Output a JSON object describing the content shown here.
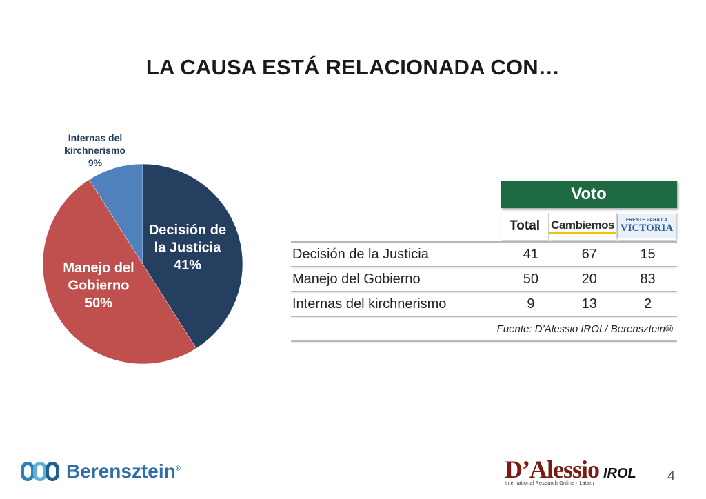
{
  "slide": {
    "title": "LA CAUSA ESTÁ RELACIONADA CON…",
    "page_number": "4"
  },
  "chart_data": {
    "type": "pie",
    "title": "",
    "slices": [
      {
        "label_lines": [
          "Decisión de",
          "la Justicia"
        ],
        "value": 41,
        "value_label": "41%",
        "color": "#243f60"
      },
      {
        "label_lines": [
          "Manejo del",
          "Gobierno"
        ],
        "value": 50,
        "value_label": "50%",
        "color": "#c0504d"
      },
      {
        "label_lines": [
          "Internas del",
          "kirchnerismo"
        ],
        "value": 9,
        "value_label": "9%",
        "color": "#4f81bd"
      }
    ]
  },
  "table": {
    "group_header": "Voto",
    "col_total": "Total",
    "col_cambiemos": "Cambiemos",
    "col_fpv_top": "FRENTE PARA LA",
    "col_fpv_main": "VICTORIA",
    "rows": [
      {
        "label": "Decisión de la Justicia",
        "total": "41",
        "cambiemos": "67",
        "fpv": "15"
      },
      {
        "label": "Manejo del Gobierno",
        "total": "50",
        "cambiemos": "20",
        "fpv": "83"
      },
      {
        "label": "Internas del kirchnerismo",
        "total": "9",
        "cambiemos": "13",
        "fpv": "2"
      }
    ],
    "source": "Fuente: D’Alessio IROL/ Berensztein®"
  },
  "logos": {
    "berensztein": "Berensztein",
    "berensztein_reg": "®",
    "dalessio": "D’Alessio",
    "irol": "IROL",
    "dalessio_sub": "International Research Online · Latam"
  },
  "colors": {
    "voto_header": "#1e6b43",
    "slice_justicia": "#243f60",
    "slice_gobierno": "#c0504d",
    "slice_internas": "#4f81bd"
  }
}
